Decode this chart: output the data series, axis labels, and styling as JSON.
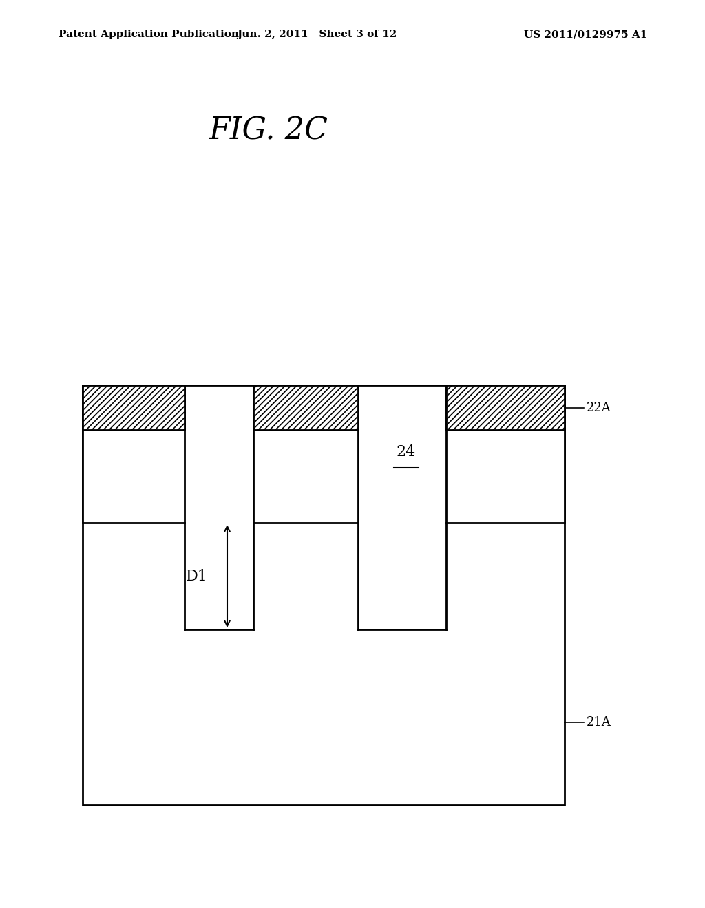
{
  "title": "FIG. 2C",
  "header_left": "Patent Application Publication",
  "header_center": "Jun. 2, 2011   Sheet 3 of 12",
  "header_right": "US 2011/0129975 A1",
  "background_color": "#ffffff",
  "fig_width": 10.24,
  "fig_height": 13.2,
  "label_22A": "22A",
  "label_21A": "21A",
  "label_24": "24",
  "label_D1": "D1",
  "hatch_pattern": "////",
  "hatch_linewidth": 1.2
}
